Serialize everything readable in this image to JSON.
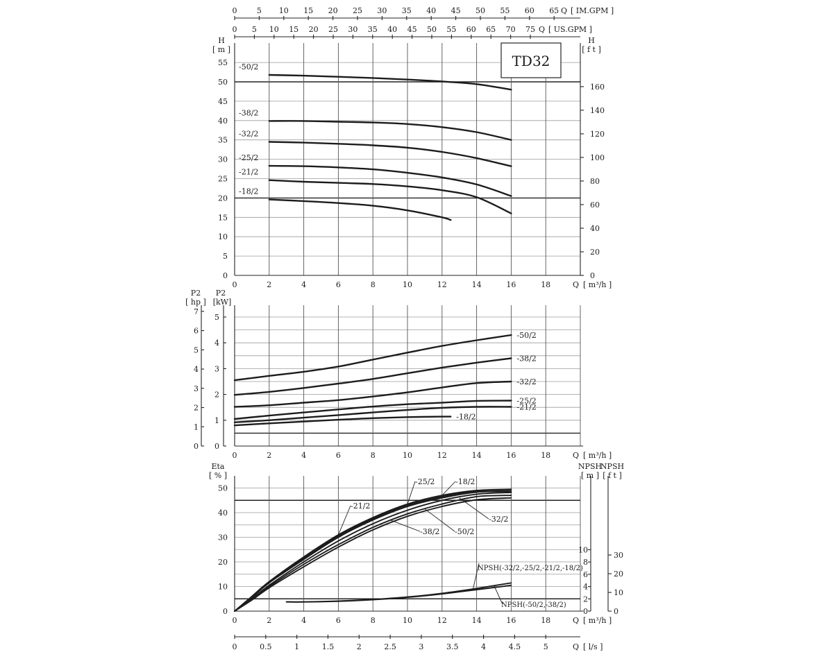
{
  "chart_data": {
    "type": "line",
    "title": "TD32",
    "x_axis": {
      "label": "Q",
      "unit": "[ m³/h ]",
      "range": [
        0,
        20
      ],
      "ticks": [
        "0",
        "2",
        "4",
        "6",
        "8",
        "10",
        "12",
        "14",
        "16",
        "18"
      ]
    },
    "top_axes": [
      {
        "label": "Q",
        "unit": "[ IM.GPM ]",
        "ticks": [
          "0",
          "5",
          "10",
          "15",
          "20",
          "25",
          "30",
          "35",
          "40",
          "45",
          "50",
          "55",
          "60",
          "65"
        ]
      },
      {
        "label": "Q",
        "unit": "[ US.GPM ]",
        "ticks": [
          "0",
          "5",
          "10",
          "15",
          "20",
          "25",
          "30",
          "35",
          "40",
          "45",
          "50",
          "55",
          "60",
          "65",
          "70",
          "75"
        ]
      }
    ],
    "bottom_axis": {
      "label": "Q",
      "unit": "[ l/s ]",
      "ticks": [
        "0",
        "0.5",
        "1",
        "1.5",
        "2",
        "2.5",
        "3",
        "3.5",
        "4",
        "4.5",
        "5"
      ]
    },
    "head_panel": {
      "ylabel": "H",
      "yunit": "[ m ]",
      "ylim": [
        0,
        57
      ],
      "yticks": [
        "0",
        "5",
        "10",
        "15",
        "20",
        "25",
        "30",
        "35",
        "40",
        "45",
        "50",
        "55"
      ],
      "y2label": "H",
      "y2unit": "[ f t ]",
      "y2ticks": [
        "0",
        "20",
        "40",
        "60",
        "80",
        "100",
        "120",
        "140",
        "160"
      ],
      "series": [
        {
          "name": "-50/2",
          "x": [
            2,
            4,
            6,
            8,
            10,
            12,
            14,
            16
          ],
          "y": [
            51.8,
            51.6,
            51.3,
            51.0,
            50.6,
            50.1,
            49.4,
            48.0
          ]
        },
        {
          "name": "-38/2",
          "x": [
            2,
            4,
            6,
            8,
            10,
            12,
            14,
            16
          ],
          "y": [
            39.9,
            39.9,
            39.7,
            39.5,
            39.1,
            38.3,
            37.0,
            35.0
          ]
        },
        {
          "name": "-32/2",
          "x": [
            2,
            4,
            6,
            8,
            10,
            12,
            14,
            16
          ],
          "y": [
            34.5,
            34.3,
            34.0,
            33.6,
            33.0,
            31.9,
            30.3,
            28.2
          ]
        },
        {
          "name": "-25/2",
          "x": [
            2,
            4,
            6,
            8,
            10,
            12,
            14,
            16
          ],
          "y": [
            28.3,
            28.2,
            27.9,
            27.4,
            26.5,
            25.3,
            23.5,
            20.5
          ]
        },
        {
          "name": "-21/2",
          "x": [
            2,
            4,
            6,
            8,
            10,
            12,
            14,
            16
          ],
          "y": [
            24.6,
            24.2,
            23.9,
            23.6,
            23.0,
            22.0,
            20.2,
            16.0
          ]
        },
        {
          "name": "-18/2",
          "x": [
            2,
            4,
            6,
            8,
            10,
            12,
            12.5
          ],
          "y": [
            19.6,
            19.2,
            18.7,
            18.0,
            16.8,
            15.0,
            14.3
          ]
        }
      ]
    },
    "power_panel": {
      "ylabel": "P2",
      "yunit": "[kW]",
      "ylim": [
        0,
        5.4
      ],
      "yticks": [
        "0",
        "1",
        "2",
        "3",
        "4",
        "5"
      ],
      "y2label": "P2",
      "y2unit": "[ hp ]",
      "y2ticks": [
        "0",
        "1",
        "2",
        "3",
        "4",
        "5",
        "6",
        "7"
      ],
      "series": [
        {
          "name": "-50/2",
          "x": [
            0,
            2,
            4,
            6,
            8,
            10,
            12,
            14,
            16
          ],
          "y": [
            2.55,
            2.72,
            2.88,
            3.08,
            3.35,
            3.62,
            3.88,
            4.1,
            4.3
          ]
        },
        {
          "name": "-38/2",
          "x": [
            0,
            2,
            4,
            6,
            8,
            10,
            12,
            14,
            16
          ],
          "y": [
            1.98,
            2.1,
            2.25,
            2.42,
            2.6,
            2.82,
            3.04,
            3.23,
            3.4
          ]
        },
        {
          "name": "-32/2",
          "x": [
            0,
            2,
            4,
            6,
            8,
            10,
            12,
            14,
            16
          ],
          "y": [
            1.52,
            1.58,
            1.68,
            1.78,
            1.92,
            2.08,
            2.27,
            2.44,
            2.5
          ]
        },
        {
          "name": "-25/2",
          "x": [
            0,
            2,
            4,
            6,
            8,
            10,
            12,
            14,
            16
          ],
          "y": [
            1.05,
            1.18,
            1.3,
            1.42,
            1.53,
            1.62,
            1.68,
            1.75,
            1.76
          ]
        },
        {
          "name": "-21/2",
          "x": [
            0,
            2,
            4,
            6,
            8,
            10,
            12,
            14,
            16
          ],
          "y": [
            0.92,
            1.0,
            1.1,
            1.2,
            1.3,
            1.4,
            1.48,
            1.52,
            1.52
          ]
        },
        {
          "name": "-18/2",
          "x": [
            0,
            2,
            4,
            6,
            8,
            10,
            12,
            12.5
          ],
          "y": [
            0.8,
            0.88,
            0.95,
            1.02,
            1.08,
            1.12,
            1.14,
            1.14
          ]
        }
      ]
    },
    "eta_panel": {
      "ylabel": "Eta",
      "yunit": "[ % ]",
      "ylim": [
        0,
        53
      ],
      "yticks": [
        "0",
        "10",
        "20",
        "30",
        "40",
        "50"
      ],
      "npsh_m_label": "NPSH",
      "npsh_m_unit": "[ m ]",
      "npsh_m_ticks": [
        "0",
        "2",
        "4",
        "6",
        "8",
        "10"
      ],
      "npsh_ft_label": "NPSH",
      "npsh_ft_unit": "[ f t ]",
      "npsh_ft_ticks": [
        "0",
        "10",
        "20",
        "30"
      ],
      "series": [
        {
          "name": "-25/2",
          "x": [
            0,
            1,
            2,
            4,
            6,
            8,
            10,
            12,
            14,
            16
          ],
          "y": [
            0,
            6,
            12,
            22,
            31,
            38,
            43.5,
            47,
            49,
            49.5
          ]
        },
        {
          "name": "-18/2",
          "x": [
            0,
            1,
            2,
            4,
            6,
            8,
            10,
            12,
            14,
            16
          ],
          "y": [
            0,
            5.8,
            11.8,
            21.5,
            30.5,
            37.5,
            43,
            46.5,
            48.8,
            49.2
          ]
        },
        {
          "name": "-21/2",
          "x": [
            0,
            1,
            2,
            4,
            6,
            8,
            10,
            12,
            14,
            16
          ],
          "y": [
            0,
            5.5,
            11.5,
            21,
            30,
            37,
            42.5,
            46,
            48.3,
            48.6
          ]
        },
        {
          "name": "-32/2",
          "x": [
            0,
            1,
            2,
            4,
            6,
            8,
            10,
            12,
            14,
            16
          ],
          "y": [
            0,
            5,
            10.5,
            20,
            28.5,
            35.5,
            41,
            45,
            47.5,
            48.2
          ]
        },
        {
          "name": "-50/2",
          "x": [
            0,
            1,
            2,
            4,
            6,
            8,
            10,
            12,
            14,
            16
          ],
          "y": [
            0,
            4.8,
            10,
            19,
            27,
            34,
            39.5,
            43.5,
            46.5,
            47
          ]
        },
        {
          "name": "-38/2",
          "x": [
            0,
            1,
            2,
            4,
            6,
            8,
            10,
            12,
            14,
            16
          ],
          "y": [
            0,
            4.5,
            9.5,
            18,
            26,
            33,
            38.5,
            42.5,
            45.2,
            46
          ]
        }
      ],
      "npsh_series": [
        {
          "name": "NPSH(-32/2,-25/2,-21/2,-18/2)",
          "x": [
            3,
            4,
            6,
            8,
            10,
            12,
            14,
            16
          ],
          "y": [
            1.5,
            1.5,
            1.65,
            1.9,
            2.3,
            2.9,
            3.7,
            4.6
          ]
        },
        {
          "name": "NPSH(-50/2,-38/2)",
          "x": [
            3,
            4,
            6,
            8,
            10,
            12,
            14,
            16
          ],
          "y": [
            1.5,
            1.5,
            1.6,
            1.85,
            2.25,
            2.8,
            3.5,
            4.2
          ]
        }
      ]
    }
  }
}
